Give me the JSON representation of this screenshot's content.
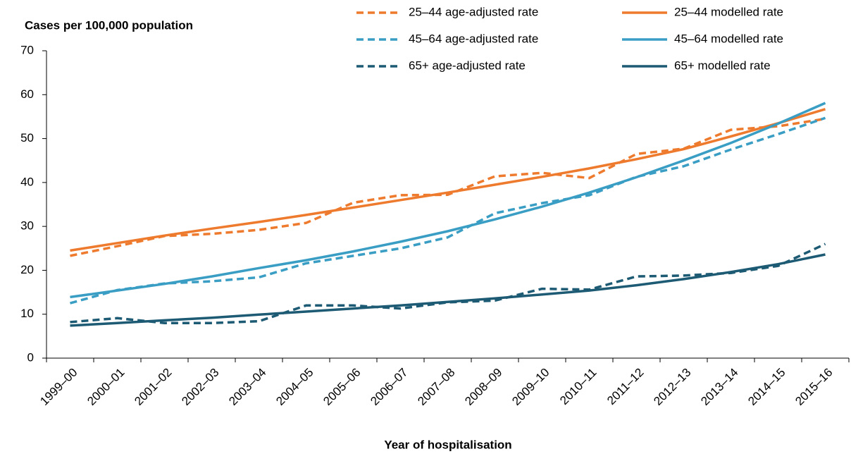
{
  "chart_data": {
    "type": "line",
    "y_label": "Cases per 100,000 population",
    "x_label": "Year of hospitalisation",
    "categories": [
      "1999–00",
      "2000–01",
      "2001–02",
      "2002–03",
      "2003–04",
      "2004–05",
      "2005–06",
      "2006–07",
      "2007–08",
      "2008–09",
      "2009–10",
      "2010–11",
      "2011–12",
      "2012–13",
      "2013–14",
      "2014–15",
      "2015–16"
    ],
    "ylim": [
      0,
      70
    ],
    "yticks": [
      0,
      10,
      20,
      30,
      40,
      50,
      60,
      70
    ],
    "grid": false,
    "series": [
      {
        "name": "25–44 age-adjusted rate",
        "color": "#ee7a2d",
        "style": "dashed",
        "values": [
          23.3,
          25.5,
          27.8,
          28.3,
          29.2,
          30.8,
          35.4,
          37.1,
          37.2,
          41.4,
          42.2,
          41.0,
          46.5,
          47.7,
          52.0,
          52.8,
          54.5
        ]
      },
      {
        "name": "25–44 modelled rate",
        "color": "#ee7a2d",
        "style": "solid",
        "values": [
          24.5,
          26.2,
          27.9,
          29.5,
          31.0,
          32.6,
          34.3,
          36.0,
          37.7,
          39.5,
          41.3,
          43.2,
          45.3,
          47.6,
          50.5,
          53.5,
          56.7
        ]
      },
      {
        "name": "45–64 age-adjusted rate",
        "color": "#3a9ec4",
        "style": "dashed",
        "values": [
          12.5,
          15.5,
          17.0,
          17.5,
          18.4,
          21.6,
          23.3,
          25.0,
          27.5,
          33.0,
          35.3,
          37.1,
          41.3,
          43.7,
          47.5,
          51.0,
          54.7
        ]
      },
      {
        "name": "45–64 modelled rate",
        "color": "#3a9ec4",
        "style": "solid",
        "values": [
          13.9,
          15.4,
          16.9,
          18.6,
          20.5,
          22.3,
          24.3,
          26.5,
          28.9,
          31.6,
          34.5,
          37.7,
          41.2,
          45.0,
          49.0,
          53.4,
          58.1
        ]
      },
      {
        "name": "65+ age-adjusted rate",
        "color": "#1d5a73",
        "style": "dashed",
        "values": [
          8.2,
          9.1,
          8.0,
          8.0,
          8.4,
          12.0,
          12.0,
          11.3,
          12.7,
          13.1,
          15.8,
          15.6,
          18.6,
          18.8,
          19.4,
          21.0,
          26.0
        ]
      },
      {
        "name": "65+ modelled rate",
        "color": "#1d5a73",
        "style": "solid",
        "values": [
          7.4,
          8.0,
          8.6,
          9.2,
          9.9,
          10.6,
          11.3,
          12.0,
          12.8,
          13.6,
          14.5,
          15.4,
          16.6,
          18.0,
          19.6,
          21.4,
          23.6
        ]
      }
    ]
  }
}
